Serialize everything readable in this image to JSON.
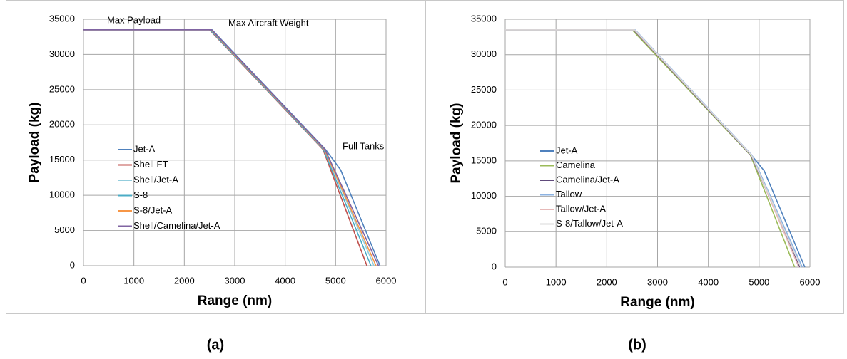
{
  "chart_data": [
    {
      "type": "line",
      "caption": "(a)",
      "x_label": "Range (nm)",
      "y_label": "Payload (kg)",
      "annotations": [
        "Max Payload",
        "Max Aircraft Weight",
        "Full Tanks"
      ],
      "xlim": [
        0,
        6000
      ],
      "xticks": [
        0,
        1000,
        2000,
        3000,
        4000,
        5000,
        6000
      ],
      "ylim": [
        0,
        35000
      ],
      "yticks": [
        0,
        5000,
        10000,
        15000,
        20000,
        25000,
        30000,
        35000
      ],
      "grid": true,
      "series": [
        {
          "name": "Jet-A",
          "color": "#4f81bd",
          "x": [
            0,
            2550,
            4800,
            5100,
            5880
          ],
          "values": [
            33500,
            33500,
            16500,
            13600,
            0
          ]
        },
        {
          "name": "Shell FT",
          "color": "#c0504d",
          "x": [
            0,
            2500,
            4750,
            5620
          ],
          "values": [
            33500,
            33500,
            16500,
            0
          ]
        },
        {
          "name": "Shell/Jet-A",
          "color": "#93cddd",
          "x": [
            0,
            2530,
            4780,
            5760
          ],
          "values": [
            33500,
            33500,
            16500,
            0
          ]
        },
        {
          "name": "S-8",
          "color": "#4bacc6",
          "x": [
            0,
            2510,
            4760,
            5700
          ],
          "values": [
            33500,
            33500,
            16500,
            0
          ]
        },
        {
          "name": "S-8/Jet-A",
          "color": "#f79646",
          "x": [
            0,
            2530,
            4780,
            5800
          ],
          "values": [
            33500,
            33500,
            16500,
            0
          ]
        },
        {
          "name": "Shell/Camelina/Jet-A",
          "color": "#8064a2",
          "x": [
            0,
            2540,
            4790,
            5850
          ],
          "values": [
            33500,
            33500,
            16500,
            0
          ]
        }
      ]
    },
    {
      "type": "line",
      "caption": "(b)",
      "x_label": "Range (nm)",
      "y_label": "Payload (kg)",
      "xlim": [
        0,
        6000
      ],
      "xticks": [
        0,
        1000,
        2000,
        3000,
        4000,
        5000,
        6000
      ],
      "ylim": [
        0,
        35000
      ],
      "yticks": [
        0,
        5000,
        10000,
        15000,
        20000,
        25000,
        30000,
        35000
      ],
      "grid": true,
      "series": [
        {
          "name": "Jet-A",
          "color": "#4f81bd",
          "x": [
            0,
            2550,
            4850,
            5100,
            5900
          ],
          "values": [
            33500,
            33500,
            15800,
            13600,
            0
          ]
        },
        {
          "name": "Camelina",
          "color": "#9bbb59",
          "x": [
            0,
            2500,
            4830,
            5700
          ],
          "values": [
            33500,
            33500,
            15800,
            0
          ]
        },
        {
          "name": "Camelina/Jet-A",
          "color": "#604a7b",
          "x": [
            0,
            2530,
            4840,
            5800
          ],
          "values": [
            33500,
            33500,
            15800,
            0
          ]
        },
        {
          "name": "Tallow",
          "color": "#8db3e2",
          "x": [
            0,
            2560,
            4860,
            5850
          ],
          "values": [
            33500,
            33500,
            15800,
            0
          ]
        },
        {
          "name": "Tallow/Jet-A",
          "color": "#e6b9b8",
          "x": [
            0,
            2540,
            4850,
            5780
          ],
          "values": [
            33500,
            33500,
            15800,
            0
          ]
        },
        {
          "name": "S-8/Tallow/Jet-A",
          "color": "#d9d9d9",
          "x": [
            0,
            2550,
            4850,
            5820
          ],
          "values": [
            33500,
            33500,
            15800,
            0
          ]
        }
      ]
    }
  ]
}
